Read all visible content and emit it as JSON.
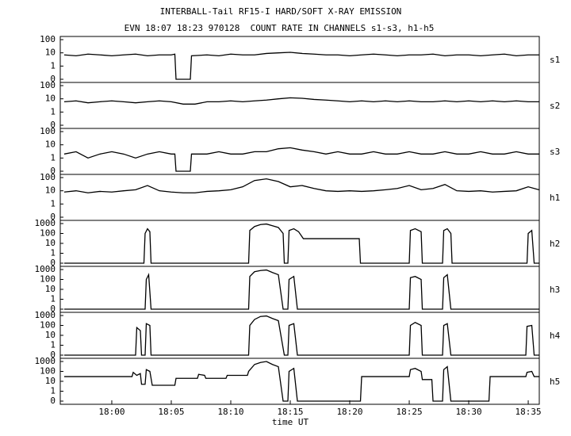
{
  "chart_data": [
    {
      "type": "line",
      "title": "INTERBALL-Tail RF15-I HARD/SOFT X-RAY EMISSION",
      "subtitle": "EVN 18:07 18:23 970128  COUNT RATE IN CHANNELS s1-s3, h1-h5",
      "yscale": "symlog",
      "ylim": [
        0,
        100
      ],
      "yticks": [
        0,
        1,
        10,
        100
      ],
      "xlim": [
        1075.67,
        1115.93
      ],
      "x": [
        1076,
        1077,
        1078,
        1079,
        1080,
        1081,
        1082,
        1083,
        1084,
        1085,
        1085.3,
        1085.4,
        1086.6,
        1086.7,
        1088,
        1089,
        1090,
        1091,
        1092,
        1093,
        1094,
        1095,
        1096,
        1097,
        1098,
        1099,
        1100,
        1101,
        1102,
        1103,
        1104,
        1105,
        1106,
        1107,
        1108,
        1109,
        1110,
        1111,
        1112,
        1113,
        1114,
        1115,
        1115.9
      ],
      "series": [
        {
          "name": "s1",
          "color": "#000000",
          "values": [
            7,
            6,
            8,
            7,
            6,
            7,
            8,
            6,
            7,
            7,
            8,
            0,
            0,
            6,
            7,
            6,
            8,
            7,
            7,
            9,
            10,
            11,
            9,
            8,
            7,
            7,
            6,
            7,
            8,
            7,
            6,
            7,
            7,
            8,
            6,
            7,
            7,
            6,
            7,
            8,
            6,
            7,
            7
          ]
        }
      ]
    },
    {
      "type": "line",
      "yscale": "symlog",
      "ylim": [
        0,
        100
      ],
      "yticks": [
        0,
        1,
        10,
        100
      ],
      "xlim": [
        1075.67,
        1115.93
      ],
      "x": [
        1076,
        1077,
        1078,
        1079,
        1080,
        1081,
        1082,
        1083,
        1084,
        1085,
        1086,
        1087,
        1088,
        1089,
        1090,
        1091,
        1092,
        1093,
        1094,
        1095,
        1096,
        1097,
        1098,
        1099,
        1100,
        1101,
        1102,
        1103,
        1104,
        1105,
        1106,
        1107,
        1108,
        1109,
        1110,
        1111,
        1112,
        1113,
        1114,
        1115,
        1115.9
      ],
      "series": [
        {
          "name": "s2",
          "color": "#000000",
          "values": [
            6,
            7,
            5,
            6,
            7,
            6,
            5,
            6,
            7,
            6,
            4,
            4,
            6,
            6,
            7,
            6,
            7,
            8,
            10,
            12,
            11,
            9,
            8,
            7,
            6,
            7,
            6,
            7,
            6,
            7,
            6,
            6,
            7,
            6,
            7,
            6,
            7,
            6,
            7,
            6,
            6
          ]
        }
      ]
    },
    {
      "type": "line",
      "yscale": "symlog",
      "ylim": [
        0,
        100
      ],
      "yticks": [
        0,
        1,
        10,
        100
      ],
      "xlim": [
        1075.67,
        1115.93
      ],
      "x": [
        1076,
        1077,
        1078,
        1079,
        1080,
        1081,
        1082,
        1083,
        1084,
        1085,
        1085.3,
        1085.4,
        1086.6,
        1086.7,
        1088,
        1089,
        1090,
        1091,
        1092,
        1093,
        1094,
        1095,
        1096,
        1097,
        1098,
        1099,
        1100,
        1101,
        1102,
        1103,
        1104,
        1105,
        1106,
        1107,
        1108,
        1109,
        1110,
        1111,
        1112,
        1113,
        1114,
        1115,
        1115.9
      ],
      "series": [
        {
          "name": "s3",
          "color": "#000000",
          "values": [
            2,
            3,
            1,
            2,
            3,
            2,
            1,
            2,
            3,
            2,
            2,
            0,
            0,
            2,
            2,
            3,
            2,
            2,
            3,
            3,
            5,
            6,
            4,
            3,
            2,
            3,
            2,
            2,
            3,
            2,
            2,
            3,
            2,
            2,
            3,
            2,
            2,
            3,
            2,
            2,
            3,
            2,
            2
          ]
        }
      ]
    },
    {
      "type": "line",
      "yscale": "symlog",
      "ylim": [
        0,
        100
      ],
      "yticks": [
        0,
        1,
        10,
        100
      ],
      "xlim": [
        1075.67,
        1115.93
      ],
      "x": [
        1076,
        1077,
        1078,
        1079,
        1080,
        1081,
        1082,
        1083,
        1084,
        1085,
        1086,
        1087,
        1088,
        1089,
        1090,
        1091,
        1092,
        1093,
        1094,
        1095,
        1096,
        1097,
        1098,
        1099,
        1100,
        1101,
        1102,
        1103,
        1104,
        1105,
        1106,
        1107,
        1108,
        1109,
        1110,
        1111,
        1112,
        1113,
        1114,
        1115,
        1115.9
      ],
      "series": [
        {
          "name": "h1",
          "color": "#000000",
          "values": [
            8,
            10,
            7,
            9,
            8,
            10,
            12,
            25,
            10,
            8,
            7,
            7,
            9,
            10,
            12,
            20,
            60,
            80,
            50,
            20,
            25,
            15,
            10,
            9,
            10,
            9,
            10,
            12,
            15,
            25,
            12,
            15,
            30,
            10,
            9,
            10,
            8,
            9,
            10,
            20,
            12
          ]
        }
      ]
    },
    {
      "type": "line",
      "yscale": "symlog",
      "ylim": [
        0,
        1000
      ],
      "yticks": [
        0,
        1,
        10,
        100,
        1000
      ],
      "xlim": [
        1075.67,
        1115.93
      ],
      "x": [
        1076,
        1082.7,
        1082.8,
        1083,
        1083.2,
        1083.3,
        1091.5,
        1091.6,
        1092,
        1092.5,
        1093,
        1093.5,
        1094,
        1094.4,
        1094.5,
        1094.8,
        1094.9,
        1095.3,
        1095.7,
        1096.1,
        1100.8,
        1100.9,
        1105,
        1105.1,
        1105.5,
        1106,
        1106.1,
        1107.8,
        1107.9,
        1108.2,
        1108.5,
        1108.6,
        1114.9,
        1115,
        1115.3,
        1115.5,
        1115.9
      ],
      "series": [
        {
          "name": "h2",
          "color": "#000000",
          "values": [
            0,
            0,
            100,
            300,
            150,
            0,
            0,
            200,
            500,
            800,
            900,
            600,
            400,
            100,
            0,
            0,
            200,
            300,
            150,
            30,
            30,
            0,
            0,
            200,
            300,
            150,
            0,
            0,
            200,
            300,
            100,
            0,
            0,
            100,
            200,
            0,
            0
          ]
        }
      ]
    },
    {
      "type": "line",
      "yscale": "symlog",
      "ylim": [
        0,
        1000
      ],
      "yticks": [
        0,
        1,
        10,
        100,
        1000
      ],
      "xlim": [
        1075.67,
        1115.93
      ],
      "x": [
        1076,
        1082.8,
        1082.9,
        1083.1,
        1083.3,
        1091.5,
        1091.6,
        1092,
        1092.5,
        1093,
        1093.5,
        1094,
        1094.4,
        1094.8,
        1094.9,
        1095.3,
        1095.6,
        1105,
        1105.1,
        1105.5,
        1106,
        1106.1,
        1107.8,
        1107.9,
        1108.2,
        1108.5,
        1115.9
      ],
      "series": [
        {
          "name": "h3",
          "color": "#000000",
          "values": [
            0,
            0,
            100,
            300,
            0,
            0,
            200,
            600,
            800,
            900,
            500,
            300,
            0,
            0,
            100,
            200,
            0,
            0,
            150,
            200,
            100,
            0,
            0,
            150,
            300,
            0,
            0
          ]
        }
      ]
    },
    {
      "type": "line",
      "yscale": "symlog",
      "ylim": [
        0,
        1000
      ],
      "yticks": [
        0,
        1,
        10,
        100,
        1000
      ],
      "xlim": [
        1075.67,
        1115.93
      ],
      "x": [
        1076,
        1082,
        1082.1,
        1082.4,
        1082.5,
        1082.8,
        1082.9,
        1083.2,
        1083.3,
        1091.5,
        1091.6,
        1092,
        1092.5,
        1093,
        1093.5,
        1094,
        1094.5,
        1094.8,
        1094.9,
        1095.3,
        1095.6,
        1105,
        1105.1,
        1105.5,
        1106,
        1106.1,
        1107.8,
        1107.9,
        1108.2,
        1108.5,
        1114.8,
        1114.9,
        1115.3,
        1115.5,
        1115.9
      ],
      "series": [
        {
          "name": "h4",
          "color": "#000000",
          "values": [
            0,
            0,
            60,
            30,
            0,
            0,
            150,
            100,
            0,
            0,
            100,
            400,
            800,
            900,
            500,
            300,
            0,
            0,
            100,
            150,
            0,
            0,
            100,
            200,
            100,
            0,
            0,
            100,
            150,
            0,
            0,
            80,
            100,
            0,
            0
          ]
        }
      ]
    },
    {
      "type": "line",
      "yscale": "symlog",
      "ylim": [
        0,
        1000
      ],
      "yticks": [
        0,
        1,
        10,
        100,
        1000
      ],
      "xlim": [
        1075.67,
        1115.93
      ],
      "xticks": [
        {
          "value": 1080,
          "label": "18:00"
        },
        {
          "value": 1085,
          "label": "18:05"
        },
        {
          "value": 1090,
          "label": "18:10"
        },
        {
          "value": 1095,
          "label": "18:15"
        },
        {
          "value": 1100,
          "label": "18:20"
        },
        {
          "value": 1105,
          "label": "18:25"
        },
        {
          "value": 1110,
          "label": "18:30"
        },
        {
          "value": 1115,
          "label": "18:35"
        }
      ],
      "xlabel": "time UT",
      "x": [
        1076,
        1081.7,
        1081.8,
        1082.1,
        1082.4,
        1082.5,
        1082.8,
        1082.9,
        1083.2,
        1083.4,
        1085.3,
        1085.4,
        1087.2,
        1087.3,
        1087.8,
        1087.9,
        1089.6,
        1089.7,
        1091.4,
        1091.5,
        1092,
        1092.5,
        1093,
        1093.5,
        1094,
        1094.4,
        1094.8,
        1094.9,
        1095.3,
        1095.6,
        1100.9,
        1101,
        1105,
        1105.1,
        1105.5,
        1106,
        1106.1,
        1106.9,
        1107,
        1107.8,
        1107.9,
        1108.2,
        1108.5,
        1111.7,
        1111.8,
        1114.8,
        1114.9,
        1115.3,
        1115.5,
        1115.9
      ],
      "series": [
        {
          "name": "h5",
          "color": "#000000",
          "values": [
            30,
            30,
            80,
            40,
            60,
            5,
            5,
            150,
            100,
            4,
            4,
            20,
            20,
            50,
            40,
            20,
            20,
            40,
            40,
            100,
            500,
            800,
            1000,
            500,
            300,
            0,
            0,
            100,
            200,
            0,
            0,
            30,
            30,
            150,
            200,
            100,
            15,
            15,
            0,
            0,
            150,
            300,
            0,
            0,
            30,
            30,
            80,
            100,
            30,
            30
          ]
        }
      ]
    }
  ]
}
